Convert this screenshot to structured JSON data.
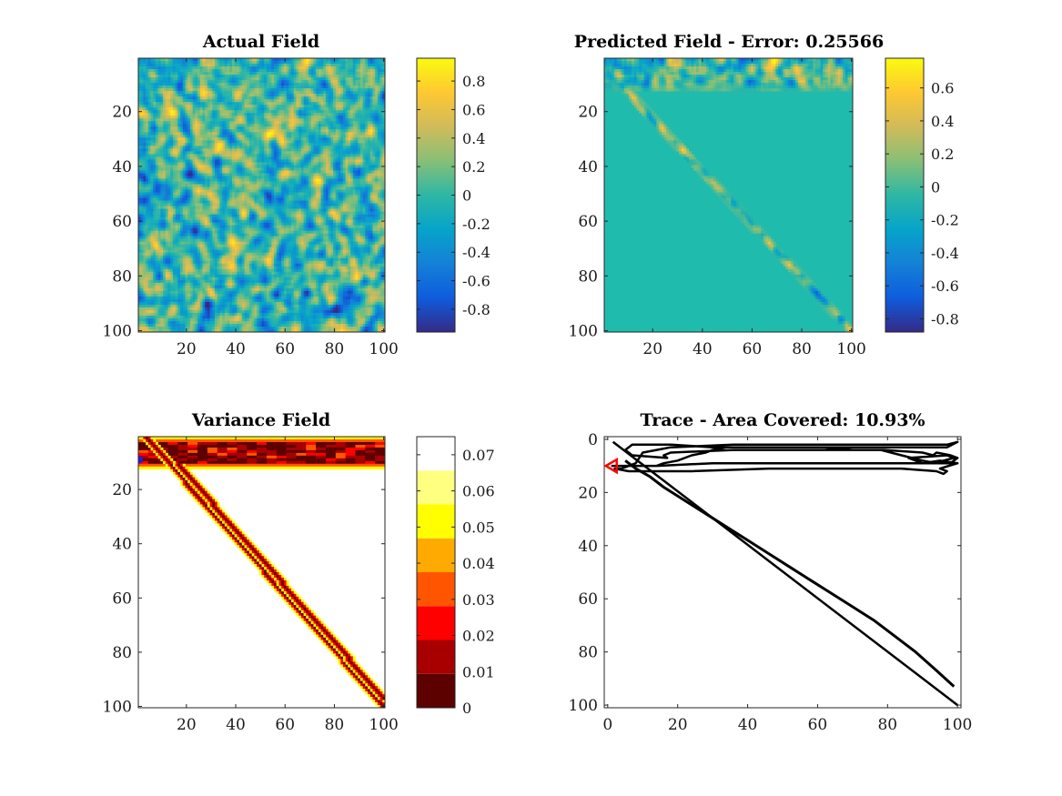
{
  "chart_data": [
    {
      "type": "heatmap",
      "title": "Actual Field",
      "xlim": [
        0.5,
        100.5
      ],
      "ylim": [
        100.5,
        0.5
      ],
      "x_ticks": [
        20,
        40,
        60,
        80,
        100
      ],
      "y_ticks": [
        20,
        40,
        60,
        80,
        100
      ],
      "x_tick_labels": [
        "20",
        "40",
        "60",
        "80",
        "100"
      ],
      "y_tick_labels": [
        "20",
        "40",
        "60",
        "80",
        "100"
      ],
      "colormap": "parula",
      "clim": [
        -0.96,
        0.96
      ],
      "colorbar_ticks": [
        0.8,
        0.6,
        0.4,
        0.2,
        0,
        -0.2,
        -0.4,
        -0.6,
        -0.8
      ],
      "colorbar_tick_labels": [
        "0.8",
        "0.6",
        "0.4",
        "0.2",
        "0",
        "-0.2",
        "-0.4",
        "-0.6",
        "-0.8"
      ],
      "field": "random smooth spatial field, values roughly in [-0.9, 0.9]"
    },
    {
      "type": "heatmap",
      "title": "Predicted Field - Error: 0.25566",
      "xlim": [
        0.5,
        100.5
      ],
      "ylim": [
        100.5,
        0.5
      ],
      "x_ticks": [
        20,
        40,
        60,
        80,
        100
      ],
      "y_ticks": [
        20,
        40,
        60,
        80,
        100
      ],
      "x_tick_labels": [
        "20",
        "40",
        "60",
        "80",
        "100"
      ],
      "y_tick_labels": [
        "20",
        "40",
        "60",
        "80",
        "100"
      ],
      "colormap": "parula",
      "clim": [
        -0.88,
        0.78
      ],
      "colorbar_ticks": [
        0.6,
        0.4,
        0.2,
        0,
        -0.2,
        -0.4,
        -0.6,
        -0.8
      ],
      "colorbar_tick_labels": [
        "0.6",
        "0.4",
        "0.2",
        "0",
        "-0.2",
        "-0.4",
        "-0.6",
        "-0.8"
      ],
      "baseline_value": 0,
      "field": "mean prior (0) except along sampled band rows 1-11 and diagonal from (5,8) to (100,100)"
    },
    {
      "type": "heatmap",
      "title": "Variance Field",
      "xlim": [
        0.5,
        100.5
      ],
      "ylim": [
        100.5,
        0.5
      ],
      "x_ticks": [
        20,
        40,
        60,
        80,
        100
      ],
      "y_ticks": [
        20,
        40,
        60,
        80,
        100
      ],
      "x_tick_labels": [
        "20",
        "40",
        "60",
        "80",
        "100"
      ],
      "y_tick_labels": [
        "20",
        "40",
        "60",
        "80",
        "100"
      ],
      "colormap": "hot (8 levels)",
      "clim": [
        0,
        0.075
      ],
      "colorbar_ticks": [
        0.07,
        0.06,
        0.05,
        0.04,
        0.03,
        0.02,
        0.01,
        0
      ],
      "colorbar_tick_labels": [
        "0.07",
        "0.06",
        "0.05",
        "0.04",
        "0.03",
        "0.02",
        "0.01",
        "0"
      ],
      "levels": [
        "#5c0000",
        "#a80000",
        "#ff0000",
        "#ff5500",
        "#ffaa00",
        "#ffff00",
        "#ffff80",
        "#ffffff"
      ],
      "current_position": {
        "x": 1,
        "y": 9
      },
      "marker_color": "#1f1fd6"
    },
    {
      "type": "line",
      "title": "Trace - Area Covered: 10.93%",
      "xlim": [
        -1,
        101
      ],
      "ylim": [
        101,
        -1
      ],
      "x_ticks": [
        0,
        20,
        40,
        60,
        80,
        100
      ],
      "y_ticks": [
        0,
        20,
        40,
        60,
        80,
        100
      ],
      "x_tick_labels": [
        "0",
        "20",
        "40",
        "60",
        "80",
        "100"
      ],
      "y_tick_labels": [
        "0",
        "20",
        "40",
        "60",
        "80",
        "100"
      ],
      "series": [
        {
          "color": "#000000",
          "x": [
            1,
            2,
            14,
            30,
            98,
            99,
            100,
            98,
            94,
            93,
            90,
            79,
            36,
            18,
            16,
            17,
            7,
            5,
            7,
            18,
            30,
            97,
            100,
            97,
            36,
            18,
            14,
            10,
            8,
            4,
            2,
            6,
            24,
            46,
            67,
            84,
            94,
            96,
            97,
            95,
            100,
            95,
            90,
            88,
            86,
            97,
            99,
            96,
            94,
            90,
            84,
            78,
            70,
            62,
            54,
            46,
            34,
            30,
            28,
            24,
            20,
            16,
            14
          ],
          "y": [
            10,
            10,
            10,
            9,
            9,
            8,
            7,
            6,
            5,
            6,
            5,
            4,
            4,
            5,
            6,
            7,
            6,
            4,
            2,
            2,
            3,
            3,
            1,
            2,
            2,
            3,
            4,
            5,
            9,
            11,
            11,
            12,
            12,
            11,
            11,
            11,
            12,
            13,
            12,
            11,
            9,
            8,
            9,
            8,
            7,
            6,
            7,
            8,
            9,
            8,
            6,
            4,
            4,
            3,
            3,
            3,
            3,
            4,
            5,
            6,
            8,
            9,
            10
          ]
        },
        {
          "color": "#000000",
          "x": [
            1.5,
            100
          ],
          "y": [
            1,
            100
          ]
        },
        {
          "color": "#000000",
          "x": [
            5,
            8,
            12,
            16,
            22,
            28,
            34,
            40,
            46,
            52,
            58,
            64,
            70,
            76,
            82,
            88,
            94,
            99
          ],
          "y": [
            8,
            11,
            14,
            18,
            23,
            28,
            33,
            38,
            43,
            48,
            53,
            58,
            63,
            68,
            74,
            80,
            87,
            93
          ]
        }
      ],
      "start_marker": {
        "x": 1,
        "y": 10,
        "shape": "triangle-left",
        "color": "#ff0000"
      }
    }
  ]
}
